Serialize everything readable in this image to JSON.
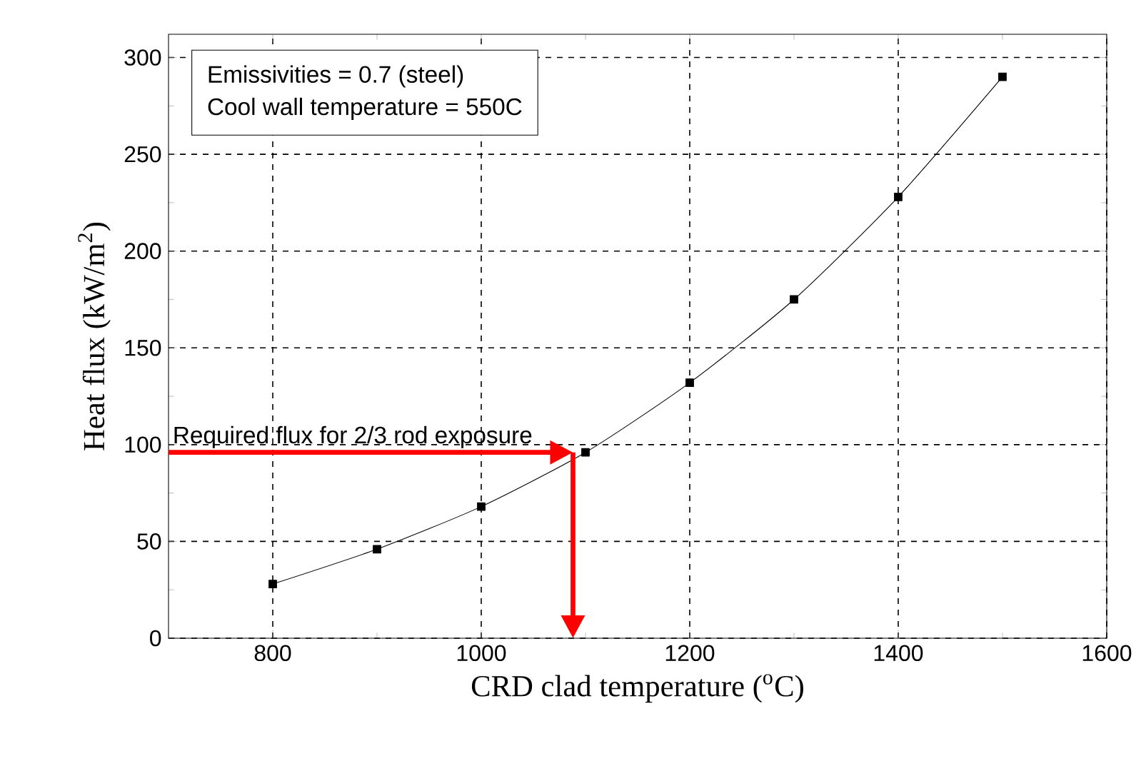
{
  "chart_data": {
    "type": "line",
    "xlabel": "CRD clad temperature ($^{o}$C)",
    "ylabel": "Heat flux (kW/m$^{2}$)",
    "x": [
      800,
      900,
      1000,
      1100,
      1200,
      1300,
      1400,
      1500
    ],
    "series": [
      {
        "color": "#000000",
        "values": [
          28,
          46,
          68,
          96,
          132,
          175,
          228,
          290
        ]
      }
    ],
    "xlim": [
      700,
      1600
    ],
    "ylim": [
      0,
      312
    ],
    "xticks": [
      800,
      1000,
      1200,
      1400,
      1600
    ],
    "yticks": [
      0,
      50,
      100,
      150,
      200,
      250,
      300
    ],
    "grid": true,
    "marker": "square",
    "line_style": "solid",
    "annotations": [
      "Emissivities = 0.7 (steel)",
      "Cool wall temperature = 550C"
    ],
    "ref_lines": [
      {
        "axis": "y",
        "value": 96,
        "label": "Required flux for 2/3 rod exposure",
        "color": "#ff0000"
      },
      {
        "axis": "x",
        "value": 1088,
        "color": "#ff0000"
      }
    ]
  }
}
